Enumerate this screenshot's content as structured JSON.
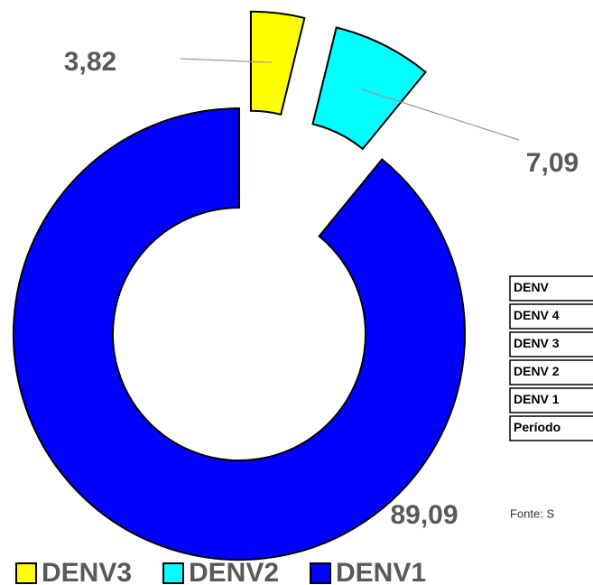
{
  "chart_data": {
    "type": "donut",
    "categories": [
      "DENV3",
      "DENV2",
      "DENV1"
    ],
    "values": [
      3.82,
      7.09,
      89.09
    ],
    "value_labels": [
      "3,82",
      "7,09",
      "89,09"
    ],
    "colors": [
      "#ffff00",
      "#00ffff",
      "#0000ff"
    ],
    "legend": "bottom"
  },
  "table": {
    "rows": [
      "DENV",
      "DENV 4",
      "DENV 3",
      "DENV 2",
      "DENV 1",
      "Período"
    ]
  },
  "source": "Fonte: S"
}
